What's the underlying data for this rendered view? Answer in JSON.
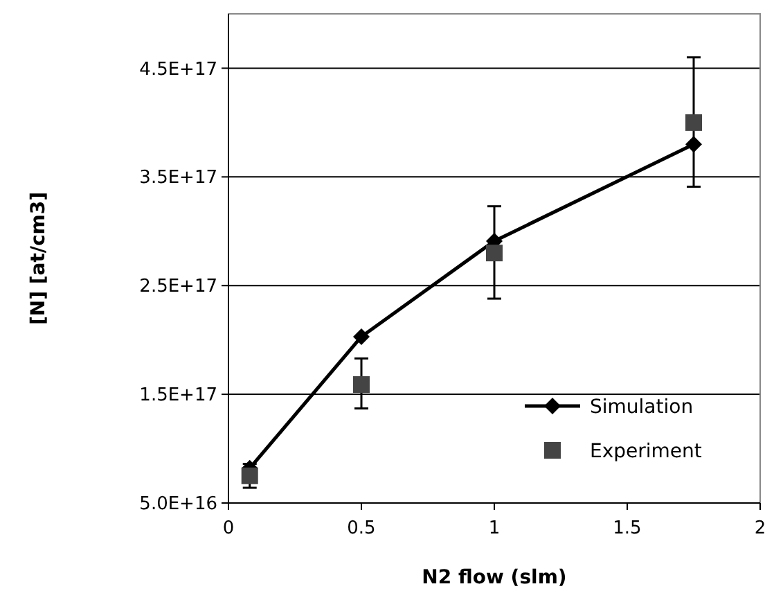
{
  "chart_data": {
    "type": "line",
    "xlabel": "N2 flow (slm)",
    "ylabel": "[N] [at/cm3]",
    "xlim": [
      0,
      2
    ],
    "xticks": [
      0,
      0.5,
      1,
      1.5,
      2
    ],
    "ylim": [
      5e+16,
      5e+17
    ],
    "yticks": [
      {
        "value": 5e+16,
        "label": "5.0E+16"
      },
      {
        "value": 1.5e+17,
        "label": "1.5E+17"
      },
      {
        "value": 2.5e+17,
        "label": "2.5E+17"
      },
      {
        "value": 3.5e+17,
        "label": "3.5E+17"
      },
      {
        "value": 4.5e+17,
        "label": "4.5E+17"
      }
    ],
    "grid": "y",
    "legend": "bottom right",
    "series": [
      {
        "name": "Simulation",
        "marker": "diamond",
        "color": "#000000",
        "x": [
          0.08,
          0.5,
          1,
          1.75
        ],
        "values": [
          8.2e+16,
          2.03e+17,
          2.91e+17,
          3.8e+17
        ]
      },
      {
        "name": "Experiment",
        "type": "scatter",
        "marker": "square",
        "color": "#444444",
        "x": [
          0.08,
          0.5,
          1,
          1.75
        ],
        "values": [
          7.5e+16,
          1.59e+17,
          2.8e+17,
          4e+17
        ],
        "errors": [
          [
            6.4e+16,
            8.6e+16
          ],
          [
            1.37e+17,
            1.83e+17
          ],
          [
            2.38e+17,
            3.23e+17
          ],
          [
            3.41e+17,
            4.6e+17
          ]
        ]
      }
    ]
  }
}
